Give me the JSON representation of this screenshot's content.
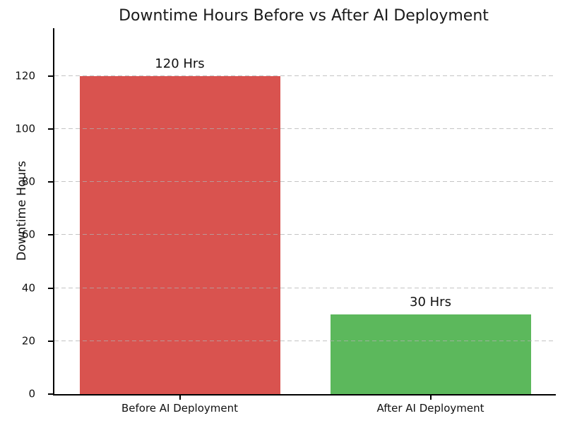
{
  "figure": {
    "title": "Downtime Hours Before vs After AI Deployment",
    "ylabel": "Downtime Hours"
  },
  "chart_data": {
    "type": "bar",
    "title": "Downtime Hours Before vs After AI Deployment",
    "xlabel": "",
    "ylabel": "Downtime Hours",
    "categories": [
      "Before AI Deployment",
      "After AI Deployment"
    ],
    "values": [
      120,
      30
    ],
    "bar_labels": [
      "120 Hrs",
      "30 Hrs"
    ],
    "bar_colors": [
      "#d9534f",
      "#5cb85c"
    ],
    "ylim": [
      0,
      138
    ],
    "yticks": [
      0,
      20,
      40,
      60,
      80,
      100,
      120
    ],
    "grid": {
      "axis": "y",
      "style": "dashed",
      "color": "#b0b0b0",
      "on_top_of_bars": true
    },
    "legend": "none",
    "spines": [
      "left",
      "bottom"
    ],
    "background_color": "#ffffff"
  }
}
